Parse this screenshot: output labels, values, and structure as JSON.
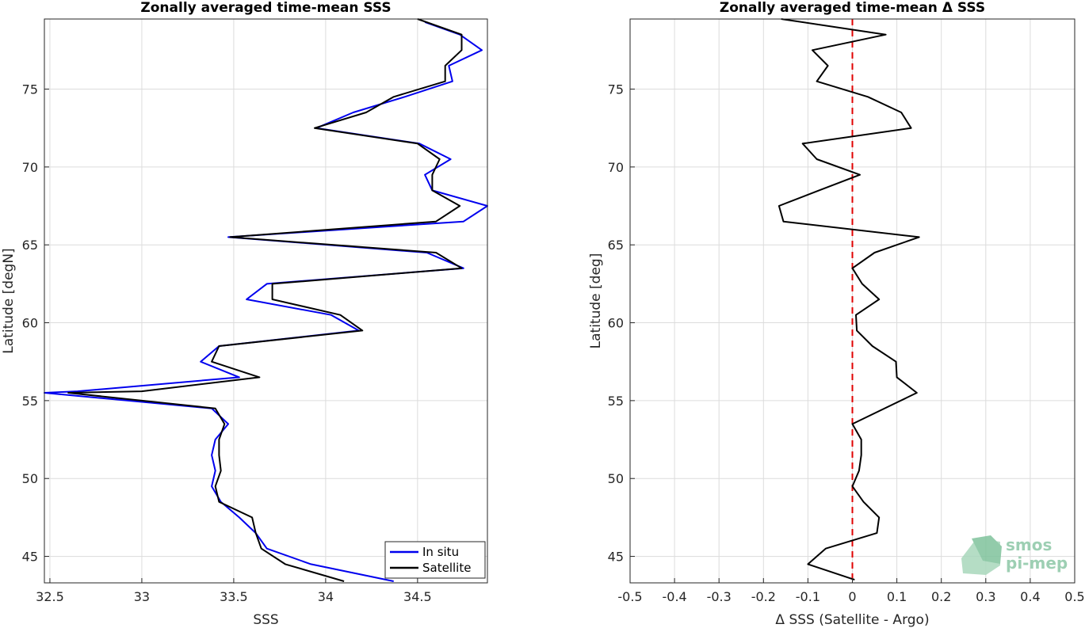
{
  "colors": {
    "in_situ": "#0000ee",
    "satellite": "#000000",
    "zero_line": "#e00000",
    "grid": "#dcdcdc",
    "logo": "#8cc7a6"
  },
  "logo": {
    "line1": "smos",
    "line2": "pi-mep"
  },
  "chart_data": [
    {
      "type": "line",
      "title": "Zonally averaged time-mean SSS",
      "xlabel": "SSS",
      "ylabel": "Latitude [degN]",
      "xlim": [
        32.47,
        34.88
      ],
      "ylim": [
        43.3,
        79.5
      ],
      "xticks": [
        32.5,
        33,
        33.5,
        34,
        34.5
      ],
      "xtick_labels": [
        "32.5",
        "33",
        "33.5",
        "34",
        "34.5"
      ],
      "yticks": [
        45,
        50,
        55,
        60,
        65,
        70,
        75
      ],
      "ytick_labels": [
        "45",
        "50",
        "55",
        "60",
        "65",
        "70",
        "75"
      ],
      "grid": true,
      "legend_position": "bottom-right",
      "series": [
        {
          "name": "In situ",
          "color": "#0000ee",
          "points": [
            [
              34.37,
              43.4
            ],
            [
              33.92,
              44.5
            ],
            [
              33.68,
              45.5
            ],
            [
              33.62,
              46.5
            ],
            [
              33.53,
              47.5
            ],
            [
              33.43,
              48.5
            ],
            [
              33.38,
              49.5
            ],
            [
              33.4,
              50.5
            ],
            [
              33.38,
              51.5
            ],
            [
              33.4,
              52.5
            ],
            [
              33.47,
              53.5
            ],
            [
              33.38,
              54.5
            ],
            [
              32.47,
              55.5
            ],
            [
              32.65,
              55.6
            ],
            [
              33.53,
              56.5
            ],
            [
              33.32,
              57.5
            ],
            [
              33.42,
              58.5
            ],
            [
              34.18,
              59.5
            ],
            [
              34.03,
              60.5
            ],
            [
              33.57,
              61.5
            ],
            [
              33.68,
              62.5
            ],
            [
              34.75,
              63.5
            ],
            [
              34.55,
              64.5
            ],
            [
              33.47,
              65.5
            ],
            [
              34.75,
              66.5
            ],
            [
              34.88,
              67.5
            ],
            [
              34.58,
              68.5
            ],
            [
              34.54,
              69.5
            ],
            [
              34.68,
              70.5
            ],
            [
              34.51,
              71.5
            ],
            [
              33.95,
              72.5
            ],
            [
              34.15,
              73.5
            ],
            [
              34.43,
              74.5
            ],
            [
              34.69,
              75.5
            ],
            [
              34.67,
              76.5
            ],
            [
              34.85,
              77.5
            ],
            [
              34.73,
              78.5
            ],
            [
              34.54,
              79.3
            ]
          ]
        },
        {
          "name": "Satellite",
          "color": "#000000",
          "points": [
            [
              34.1,
              43.4
            ],
            [
              33.78,
              44.5
            ],
            [
              33.65,
              45.5
            ],
            [
              33.62,
              46.5
            ],
            [
              33.6,
              47.5
            ],
            [
              33.42,
              48.5
            ],
            [
              33.4,
              49.5
            ],
            [
              33.43,
              50.5
            ],
            [
              33.42,
              51.5
            ],
            [
              33.42,
              52.5
            ],
            [
              33.45,
              53.5
            ],
            [
              33.4,
              54.5
            ],
            [
              32.6,
              55.5
            ],
            [
              33.0,
              55.6
            ],
            [
              33.64,
              56.5
            ],
            [
              33.38,
              57.5
            ],
            [
              33.42,
              58.5
            ],
            [
              34.2,
              59.5
            ],
            [
              34.08,
              60.5
            ],
            [
              33.71,
              61.5
            ],
            [
              33.71,
              62.5
            ],
            [
              34.74,
              63.5
            ],
            [
              34.6,
              64.5
            ],
            [
              33.48,
              65.5
            ],
            [
              34.6,
              66.5
            ],
            [
              34.73,
              67.5
            ],
            [
              34.58,
              68.5
            ],
            [
              34.58,
              69.5
            ],
            [
              34.62,
              70.5
            ],
            [
              34.5,
              71.5
            ],
            [
              33.94,
              72.5
            ],
            [
              34.22,
              73.5
            ],
            [
              34.37,
              74.5
            ],
            [
              34.65,
              75.5
            ],
            [
              34.65,
              76.5
            ],
            [
              34.74,
              77.5
            ],
            [
              34.74,
              78.5
            ],
            [
              34.5,
              79.5
            ]
          ]
        }
      ]
    },
    {
      "type": "line",
      "title": "Zonally averaged time-mean Δ SSS",
      "xlabel": "Δ SSS (Satellite - Argo)",
      "ylabel": "Latitude [deg]",
      "xlim": [
        -0.5,
        0.5
      ],
      "ylim": [
        43.3,
        79.5
      ],
      "xticks": [
        -0.5,
        -0.4,
        -0.3,
        -0.2,
        -0.1,
        0,
        0.1,
        0.2,
        0.3,
        0.4,
        0.5
      ],
      "xtick_labels": [
        "-0.5",
        "-0.4",
        "-0.3",
        "-0.2",
        "-0.1",
        "0",
        "0.1",
        "0.2",
        "0.3",
        "0.4",
        "0.5"
      ],
      "yticks": [
        45,
        50,
        55,
        60,
        65,
        70,
        75
      ],
      "ytick_labels": [
        "45",
        "50",
        "55",
        "60",
        "65",
        "70",
        "75"
      ],
      "grid": true,
      "reference_line": {
        "x": 0,
        "style": "dashed",
        "color": "#e00000"
      },
      "series": [
        {
          "name": "",
          "color": "#000000",
          "points": [
            [
              0.005,
              43.5
            ],
            [
              -0.1,
              44.5
            ],
            [
              -0.06,
              45.5
            ],
            [
              0.055,
              46.5
            ],
            [
              0.06,
              47.5
            ],
            [
              0.025,
              48.5
            ],
            [
              0.0,
              49.5
            ],
            [
              0.015,
              50.5
            ],
            [
              0.02,
              51.5
            ],
            [
              0.02,
              52.5
            ],
            [
              0.0,
              53.5
            ],
            [
              0.145,
              55.5
            ],
            [
              0.1,
              56.5
            ],
            [
              0.098,
              57.5
            ],
            [
              0.045,
              58.5
            ],
            [
              0.01,
              59.5
            ],
            [
              0.008,
              60.5
            ],
            [
              0.06,
              61.5
            ],
            [
              0.022,
              62.5
            ],
            [
              0.0,
              63.5
            ],
            [
              0.05,
              64.5
            ],
            [
              0.15,
              65.5
            ],
            [
              -0.155,
              66.5
            ],
            [
              -0.165,
              67.5
            ],
            [
              -0.075,
              68.5
            ],
            [
              0.017,
              69.5
            ],
            [
              -0.08,
              70.5
            ],
            [
              -0.112,
              71.5
            ],
            [
              0.132,
              72.5
            ],
            [
              0.11,
              73.5
            ],
            [
              0.035,
              74.5
            ],
            [
              -0.08,
              75.5
            ],
            [
              -0.055,
              76.5
            ],
            [
              -0.09,
              77.5
            ],
            [
              0.075,
              78.5
            ],
            [
              -0.16,
              79.5
            ]
          ]
        }
      ]
    }
  ]
}
